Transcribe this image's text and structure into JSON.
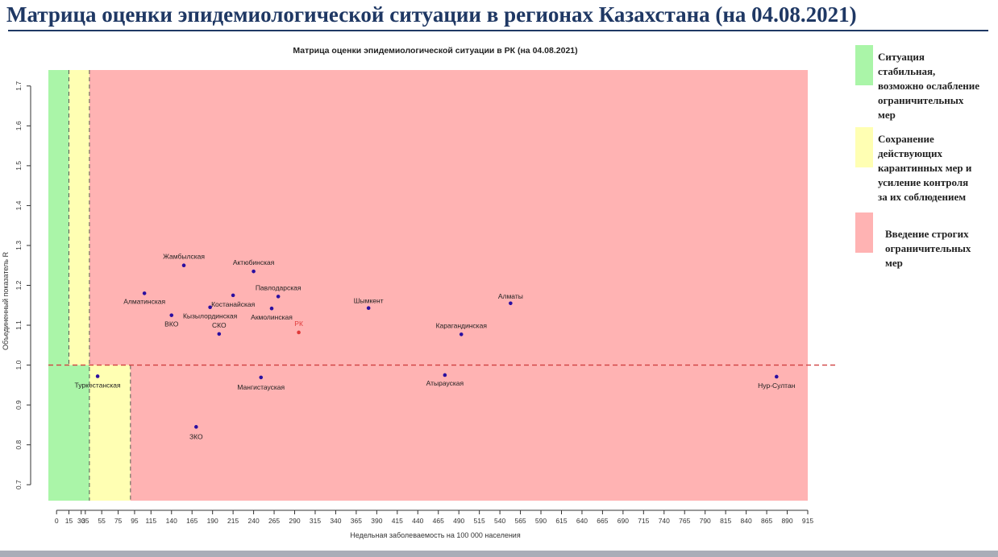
{
  "page_title": "Матрица оценки эпидемиологической ситуации в регионах Казахстана (на 04.08.2021)",
  "legend": [
    {
      "label_lines": [
        "Ситуация",
        "стабильная,",
        "возможно ослабление",
        "ограничительных",
        "мер"
      ],
      "color": "#aaf5a8"
    },
    {
      "label_lines": [
        "Сохранение",
        "действующих",
        "карантинных мер и",
        "усиление контроля",
        "за их соблюдением"
      ],
      "color": "#ffffb3"
    },
    {
      "label_lines": [
        "Введение строгих",
        "ограничительных",
        "мер"
      ],
      "color": "#ffb3b3"
    }
  ],
  "chart_data": {
    "type": "scatter",
    "title": "Матрица оценки эпидемиологической ситуации в РК (на 04.08.2021)",
    "xlabel": "Недельная заболеваемость на 100 000 населения",
    "ylabel": "Объединенный показатель R",
    "xlim": [
      -10,
      915
    ],
    "ylim": [
      0.66,
      1.74
    ],
    "x_ticks": [
      0,
      15,
      30,
      35,
      55,
      75,
      95,
      115,
      140,
      165,
      190,
      215,
      240,
      265,
      290,
      315,
      340,
      365,
      390,
      415,
      440,
      465,
      490,
      515,
      540,
      565,
      590,
      615,
      640,
      665,
      690,
      715,
      740,
      765,
      790,
      815,
      840,
      865,
      890,
      915
    ],
    "y_ticks": [
      "0.7",
      "0.8",
      "0.9",
      "1.0",
      "1.1",
      "1.2",
      "1.3",
      "1.4",
      "1.5",
      "1.6",
      "1.7"
    ],
    "threshold_r": 1.0,
    "points": [
      {
        "label": "Жамбылская",
        "x": 155,
        "y": 1.25
      },
      {
        "label": "Актюбинская",
        "x": 240,
        "y": 1.235
      },
      {
        "label": "Алматинская",
        "x": 107,
        "y": 1.18
      },
      {
        "label": "Павлодарская",
        "x": 270,
        "y": 1.172
      },
      {
        "label": "Костанайская",
        "x": 215,
        "y": 1.175
      },
      {
        "label": "Кызылординская",
        "x": 187,
        "y": 1.145
      },
      {
        "label": "Акмолинская",
        "x": 262,
        "y": 1.142
      },
      {
        "label": "ВКО",
        "x": 140,
        "y": 1.125
      },
      {
        "label": "СКО",
        "x": 198,
        "y": 1.078
      },
      {
        "label": "РК",
        "x": 295,
        "y": 1.082,
        "color": "#e03a3a"
      },
      {
        "label": "Шымкент",
        "x": 380,
        "y": 1.143
      },
      {
        "label": "Алматы",
        "x": 553,
        "y": 1.155
      },
      {
        "label": "Карагандинская",
        "x": 493,
        "y": 1.077
      },
      {
        "label": "Туркестанская",
        "x": 50,
        "y": 0.972
      },
      {
        "label": "Мангистауская",
        "x": 249,
        "y": 0.969
      },
      {
        "label": "Атырауская",
        "x": 473,
        "y": 0.975
      },
      {
        "label": "ЗКО",
        "x": 170,
        "y": 0.845
      },
      {
        "label": "Нур-Султан",
        "x": 877,
        "y": 0.971
      }
    ]
  }
}
